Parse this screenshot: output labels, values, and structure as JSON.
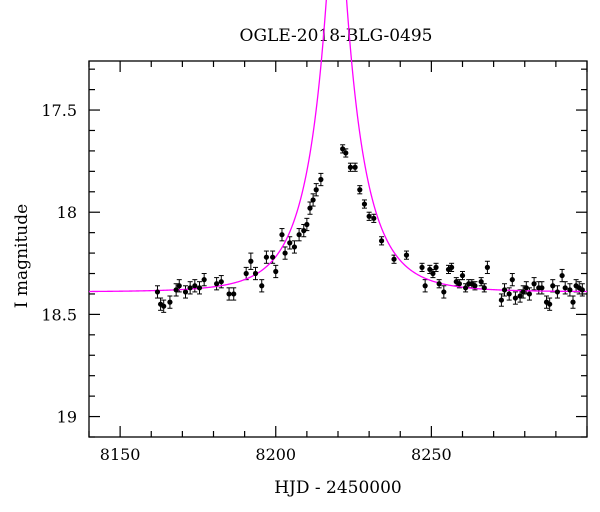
{
  "chart_data": {
    "type": "scatter",
    "title": "OGLE-2018-BLG-0495",
    "xlabel": "HJD - 2450000",
    "ylabel": "I magnitude",
    "xlim": [
      8140,
      8300
    ],
    "ylim": [
      19.1,
      17.26
    ],
    "y_inverted": true,
    "x_ticks": [
      8150,
      8200,
      8250
    ],
    "y_ticks": [
      17.5,
      18,
      18.5,
      19
    ],
    "y_tick_labels": [
      "17.5",
      "18",
      "18.5",
      "19"
    ],
    "grid": false,
    "series": [
      {
        "style": "points-with-errorbars",
        "color": "#000000",
        "points": [
          [
            8162.0,
            18.39,
            0.03
          ],
          [
            8163.0,
            18.45,
            0.03
          ],
          [
            8164.0,
            18.46,
            0.03
          ],
          [
            8166.0,
            18.44,
            0.03
          ],
          [
            8168.0,
            18.38,
            0.03
          ],
          [
            8169.0,
            18.36,
            0.03
          ],
          [
            8171.0,
            18.39,
            0.03
          ],
          [
            8172.5,
            18.37,
            0.03
          ],
          [
            8174.0,
            18.36,
            0.03
          ],
          [
            8175.5,
            18.37,
            0.03
          ],
          [
            8177.0,
            18.33,
            0.03
          ],
          [
            8181.0,
            18.35,
            0.03
          ],
          [
            8182.5,
            18.34,
            0.03
          ],
          [
            8185.0,
            18.4,
            0.03
          ],
          [
            8186.5,
            18.4,
            0.03
          ],
          [
            8190.5,
            18.3,
            0.03
          ],
          [
            8192.0,
            18.24,
            0.04
          ],
          [
            8193.5,
            18.3,
            0.03
          ],
          [
            8195.5,
            18.36,
            0.03
          ],
          [
            8197.0,
            18.22,
            0.03
          ],
          [
            8199.0,
            18.22,
            0.03
          ],
          [
            8200.0,
            18.29,
            0.03
          ],
          [
            8202.0,
            18.11,
            0.03
          ],
          [
            8203.0,
            18.2,
            0.03
          ],
          [
            8204.5,
            18.15,
            0.03
          ],
          [
            8206.0,
            18.17,
            0.03
          ],
          [
            8207.5,
            18.11,
            0.03
          ],
          [
            8209.0,
            18.09,
            0.03
          ],
          [
            8210.0,
            18.06,
            0.03
          ],
          [
            8211.0,
            17.98,
            0.03
          ],
          [
            8212.0,
            17.94,
            0.03
          ],
          [
            8213.0,
            17.89,
            0.03
          ],
          [
            8214.5,
            17.84,
            0.03
          ],
          [
            8221.5,
            17.69,
            0.02
          ],
          [
            8222.5,
            17.71,
            0.02
          ],
          [
            8224.0,
            17.78,
            0.02
          ],
          [
            8225.5,
            17.78,
            0.02
          ],
          [
            8227.0,
            17.89,
            0.02
          ],
          [
            8228.5,
            17.96,
            0.02
          ],
          [
            8230.0,
            18.02,
            0.02
          ],
          [
            8231.5,
            18.03,
            0.02
          ],
          [
            8234.0,
            18.14,
            0.02
          ],
          [
            8238.0,
            18.23,
            0.02
          ],
          [
            8242.0,
            18.21,
            0.02
          ],
          [
            8247.0,
            18.27,
            0.02
          ],
          [
            8248.0,
            18.36,
            0.03
          ],
          [
            8249.5,
            18.28,
            0.02
          ],
          [
            8250.5,
            18.3,
            0.02
          ],
          [
            8251.5,
            18.27,
            0.02
          ],
          [
            8252.5,
            18.35,
            0.02
          ],
          [
            8254.0,
            18.39,
            0.03
          ],
          [
            8255.5,
            18.28,
            0.02
          ],
          [
            8256.5,
            18.27,
            0.02
          ],
          [
            8258.0,
            18.34,
            0.02
          ],
          [
            8259.0,
            18.35,
            0.02
          ],
          [
            8260.0,
            18.31,
            0.02
          ],
          [
            8261.0,
            18.37,
            0.02
          ],
          [
            8262.0,
            18.35,
            0.02
          ],
          [
            8263.0,
            18.35,
            0.02
          ],
          [
            8264.0,
            18.36,
            0.02
          ],
          [
            8266.0,
            18.34,
            0.02
          ],
          [
            8267.0,
            18.37,
            0.02
          ],
          [
            8268.0,
            18.27,
            0.03
          ],
          [
            8272.5,
            18.43,
            0.03
          ],
          [
            8273.5,
            18.38,
            0.03
          ],
          [
            8275.0,
            18.4,
            0.03
          ],
          [
            8276.0,
            18.33,
            0.03
          ],
          [
            8277.0,
            18.42,
            0.03
          ],
          [
            8278.5,
            18.41,
            0.03
          ],
          [
            8279.5,
            18.39,
            0.03
          ],
          [
            8280.5,
            18.37,
            0.03
          ],
          [
            8281.5,
            18.4,
            0.03
          ],
          [
            8283.0,
            18.35,
            0.03
          ],
          [
            8284.5,
            18.37,
            0.03
          ],
          [
            8285.5,
            18.37,
            0.03
          ],
          [
            8287.0,
            18.44,
            0.03
          ],
          [
            8288.0,
            18.45,
            0.03
          ],
          [
            8289.0,
            18.36,
            0.03
          ],
          [
            8290.5,
            18.39,
            0.03
          ],
          [
            8292.0,
            18.31,
            0.03
          ],
          [
            8293.0,
            18.37,
            0.03
          ],
          [
            8294.5,
            18.38,
            0.03
          ],
          [
            8295.5,
            18.44,
            0.03
          ],
          [
            8296.5,
            18.36,
            0.03
          ],
          [
            8297.5,
            18.37,
            0.03
          ],
          [
            8298.5,
            18.38,
            0.03
          ]
        ]
      },
      {
        "style": "model-curve",
        "color": "#ff00ff",
        "model": {
          "type": "paczynski",
          "t0": 8219.5,
          "tE": 14.5,
          "u0": 0.16,
          "I_base": 18.39
        }
      }
    ]
  }
}
